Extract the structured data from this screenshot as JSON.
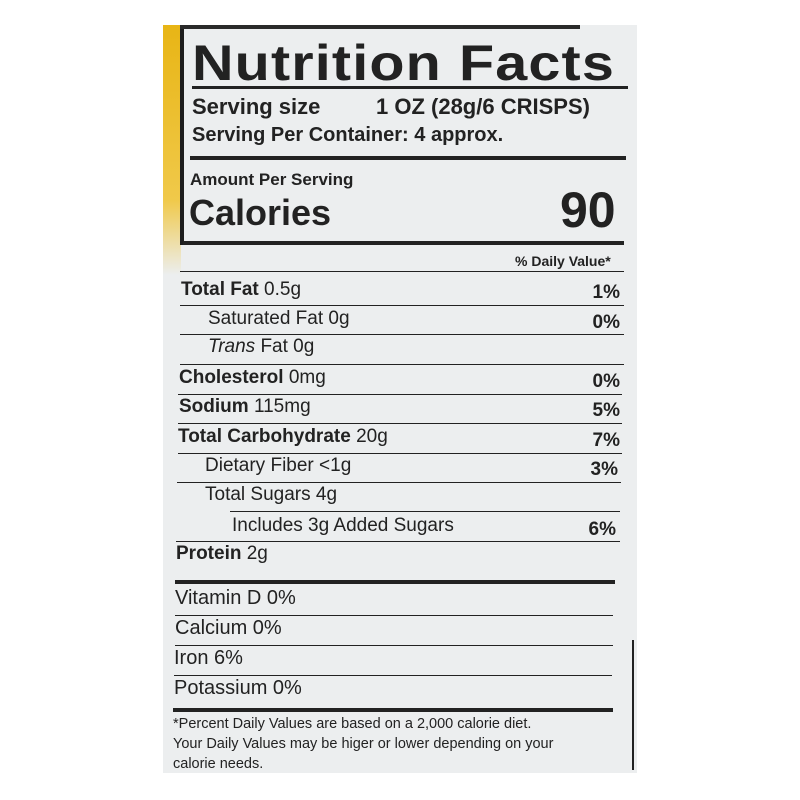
{
  "title": "Nutrition Facts",
  "serving": {
    "size_label": "Serving size",
    "size_value": "1 OZ (28g/6 CRISPS)",
    "per_container": "Serving Per Container:  4 approx."
  },
  "amount_per_serving": "Amount Per Serving",
  "calories": {
    "label": "Calories",
    "value": "90"
  },
  "daily_value_header": "% Daily Value*",
  "nutrients": [
    {
      "name": "Total Fat",
      "amount": "0.5g",
      "dv": "1%"
    },
    {
      "name": "Saturated Fat",
      "amount": "0g",
      "dv": "0%"
    },
    {
      "name": "Trans",
      "amount": "Fat 0g",
      "dv": ""
    },
    {
      "name": "Cholesterol",
      "amount": "0mg",
      "dv": "0%"
    },
    {
      "name": "Sodium",
      "amount": "115mg",
      "dv": "5%"
    },
    {
      "name": "Total Carbohydrate",
      "amount": "20g",
      "dv": "7%"
    },
    {
      "name": "Dietary Fiber",
      "amount": "<1g",
      "dv": "3%"
    },
    {
      "name": "Total Sugars",
      "amount": "4g",
      "dv": ""
    },
    {
      "name": "Includes 3g Added Sugars",
      "amount": "",
      "dv": "6%"
    },
    {
      "name": "Protein",
      "amount": "2g",
      "dv": ""
    }
  ],
  "vitamins": [
    "Vitamin D 0%",
    "Calcium 0%",
    "Iron 6%",
    "Potassium  0%"
  ],
  "footnote": [
    "*Percent Daily Values are based on a 2,000 calorie diet.",
    "Your Daily Values may be higer or lower depending on your",
    "calorie needs."
  ],
  "colors": {
    "label_bg": "#eceeef",
    "ink": "#222222",
    "packaging_yellow": "#e8b515"
  }
}
